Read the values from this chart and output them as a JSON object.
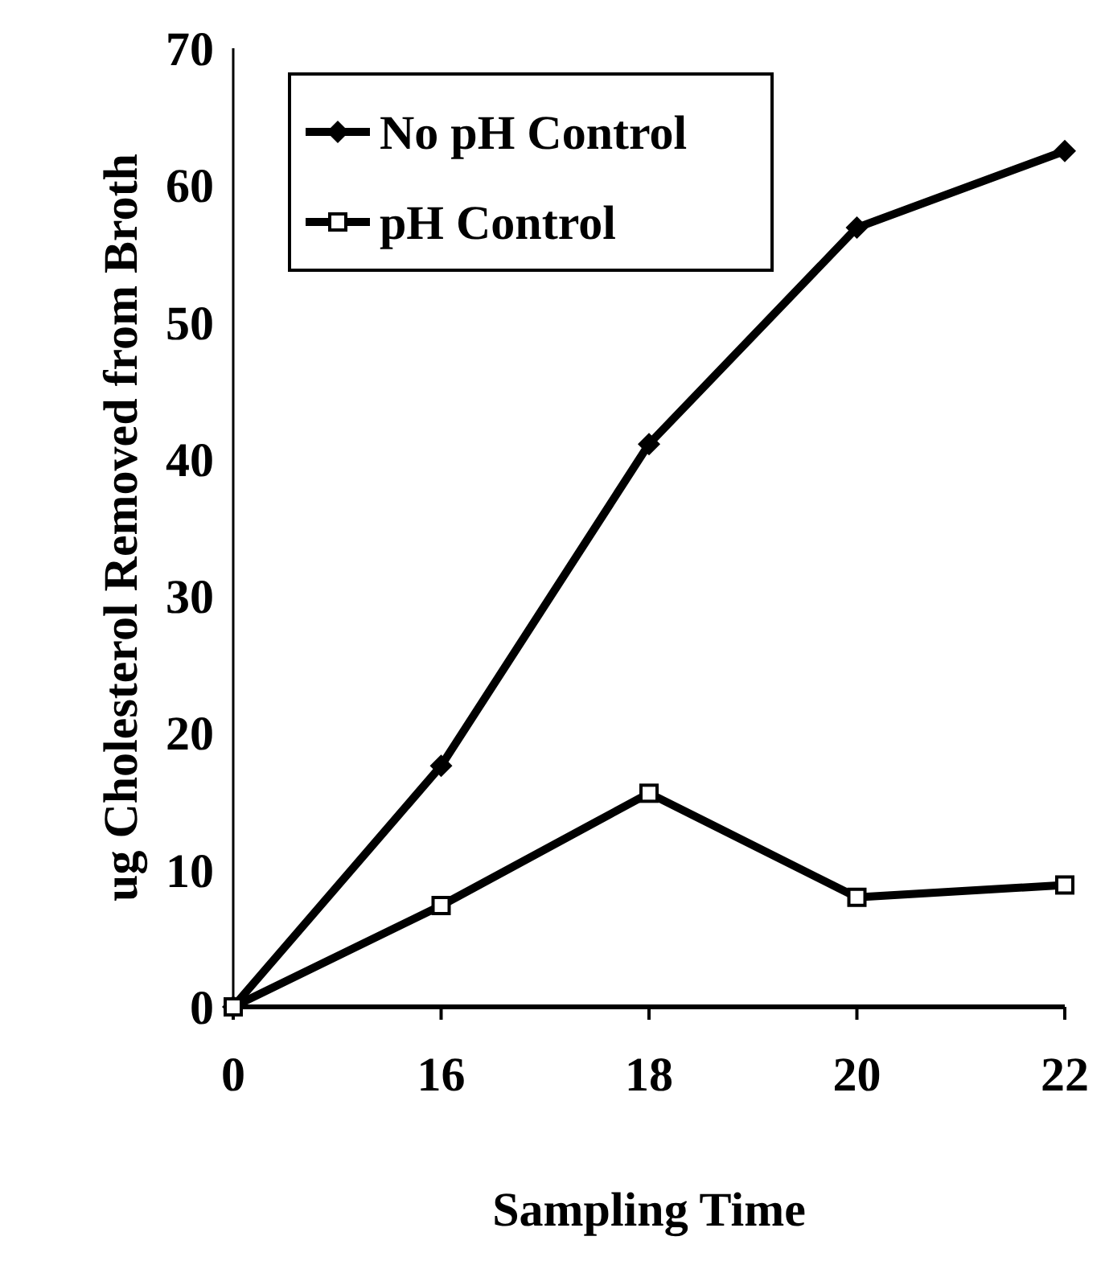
{
  "chart_data": {
    "type": "line",
    "xlabel": "Sampling Time",
    "ylabel": "ug Cholesterol Removed from Broth",
    "categories": [
      "0",
      "16",
      "18",
      "20",
      "22"
    ],
    "series": [
      {
        "name": "No pH Control",
        "color": "#000000",
        "marker": "diamond",
        "values": [
          0,
          17.6,
          41.1,
          56.9,
          62.5
        ]
      },
      {
        "name": "pH Control",
        "color": "#000000",
        "marker": "square",
        "values": [
          0,
          7.4,
          15.6,
          8.0,
          8.9
        ]
      }
    ],
    "ylim": [
      0,
      70
    ],
    "yticks": [
      0,
      10,
      20,
      30,
      40,
      50,
      60,
      70
    ],
    "grid": false,
    "legend": "top left",
    "line_style": "solid"
  }
}
